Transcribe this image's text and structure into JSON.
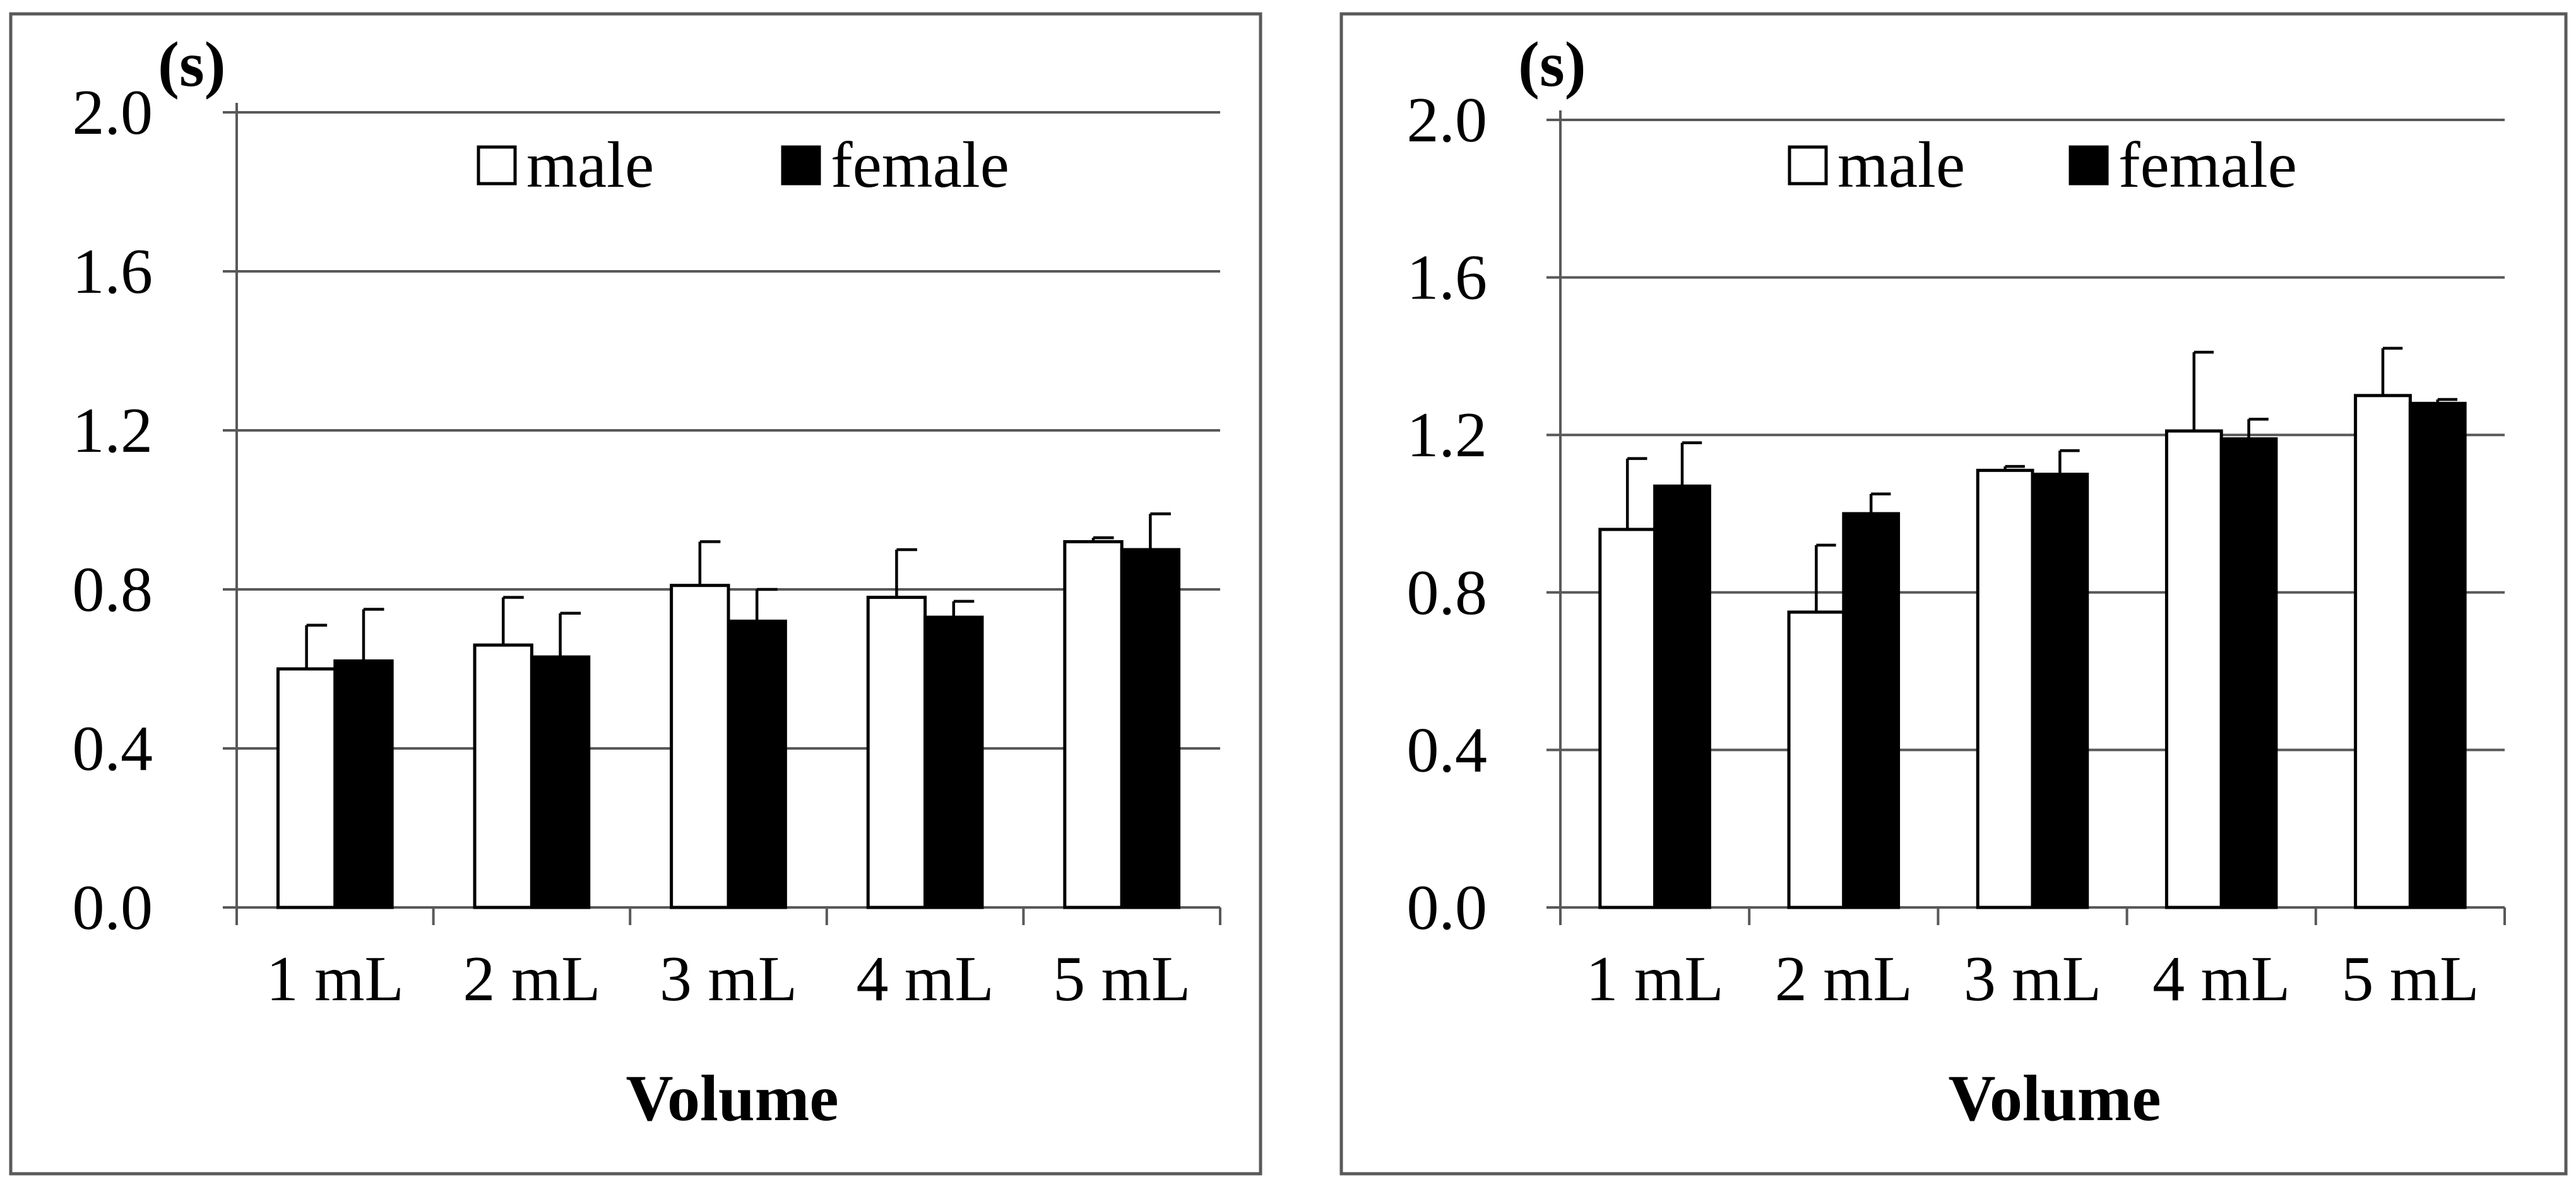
{
  "chart_data": [
    {
      "type": "bar",
      "unit_label": "(s)",
      "xlabel": "Volume",
      "ylim": [
        0,
        2.0
      ],
      "yticks": [
        "0.0",
        "0.4",
        "0.8",
        "1.2",
        "1.6",
        "2.0"
      ],
      "ytick_values": [
        0,
        0.4,
        0.8,
        1.2,
        1.6,
        2.0
      ],
      "categories": [
        "1 mL",
        "2 mL",
        "3 mL",
        "4 mL",
        "5 mL"
      ],
      "legend": [
        "male",
        "female"
      ],
      "series": [
        {
          "name": "male",
          "color": "#ffffff",
          "values": [
            0.6,
            0.66,
            0.81,
            0.78,
            0.92
          ],
          "errors": [
            0.11,
            0.12,
            0.11,
            0.12,
            0.01
          ]
        },
        {
          "name": "female",
          "color": "#000000",
          "values": [
            0.62,
            0.63,
            0.72,
            0.73,
            0.9
          ],
          "errors": [
            0.13,
            0.11,
            0.08,
            0.04,
            0.09
          ]
        }
      ]
    },
    {
      "type": "bar",
      "unit_label": "(s)",
      "xlabel": "Volume",
      "ylim": [
        0,
        2.0
      ],
      "yticks": [
        "0.0",
        "0.4",
        "0.8",
        "1.2",
        "1.6",
        "2.0"
      ],
      "ytick_values": [
        0,
        0.4,
        0.8,
        1.2,
        1.6,
        2.0
      ],
      "categories": [
        "1 mL",
        "2 mL",
        "3 mL",
        "4 mL",
        "5 mL"
      ],
      "legend": [
        "male",
        "female"
      ],
      "series": [
        {
          "name": "male",
          "color": "#ffffff",
          "values": [
            0.96,
            0.75,
            1.11,
            1.21,
            1.3
          ],
          "errors": [
            0.18,
            0.17,
            0.01,
            0.2,
            0.12
          ]
        },
        {
          "name": "female",
          "color": "#000000",
          "values": [
            1.07,
            1.0,
            1.1,
            1.19,
            1.28
          ],
          "errors": [
            0.11,
            0.05,
            0.06,
            0.05,
            0.01
          ]
        }
      ]
    }
  ]
}
